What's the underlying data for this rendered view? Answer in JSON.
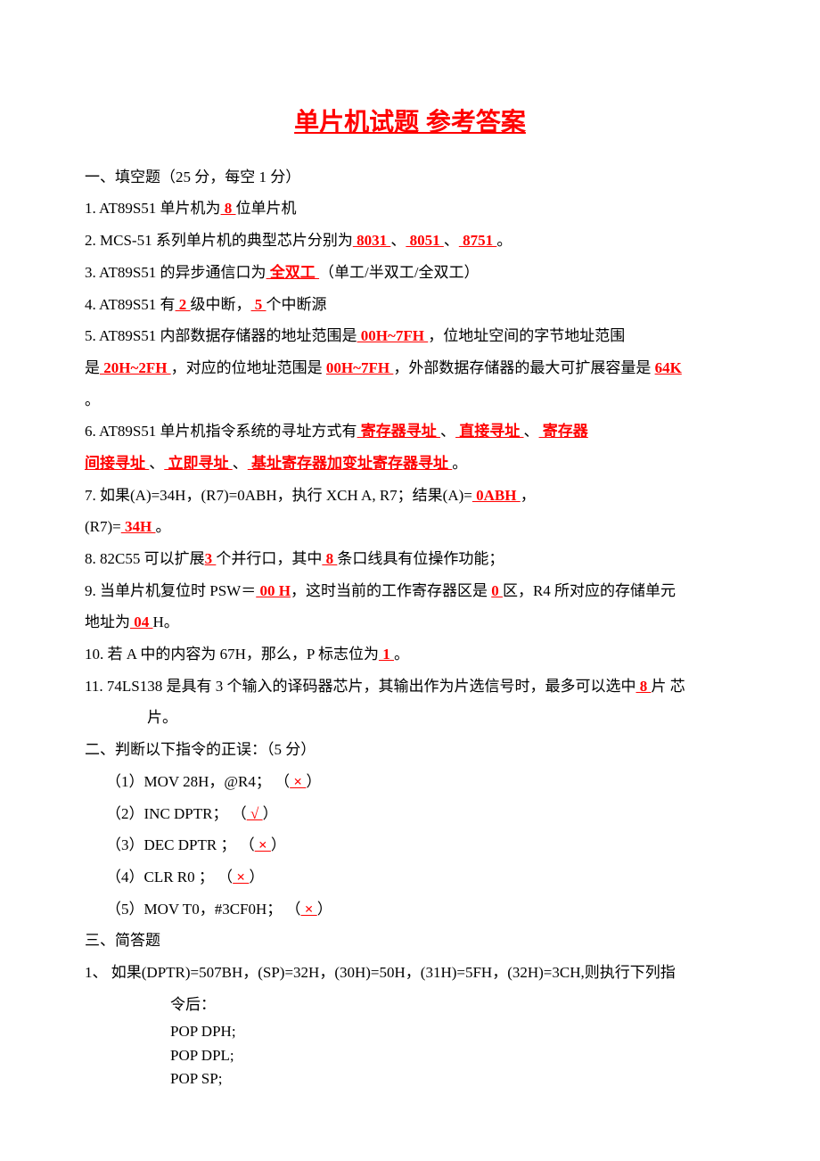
{
  "title": "单片机试题  参考答案",
  "section1": {
    "header": "一、填空题（25 分，每空 1 分）",
    "q1_pre": "1.   AT89S51 单片机为",
    "q1_ans": "   8   ",
    "q1_post": "位单片机",
    "q2_pre": "2.   MCS-51 系列单片机的典型芯片分别为",
    "q2_a1": "   8031   ",
    "q2_sep1": "、",
    "q2_a2": "   8051   ",
    "q2_sep2": "、",
    "q2_a3": "   8751   ",
    "q2_post": "。",
    "q3_pre": "3.   AT89S51 的异步通信口为",
    "q3_ans": "     全双工    ",
    "q3_post": "（单工/半双工/全双工）",
    "q4_pre": "4.   AT89S51 有",
    "q4_a1": "   2    ",
    "q4_mid": "级中断，",
    "q4_a2": "    5     ",
    "q4_post": "个中断源",
    "q5_pre": "5.   AT89S51 内部数据存储器的地址范围是",
    "q5_a1": "        00H~7FH      ",
    "q5_mid1": "，位地址空间的字节地址范围",
    "q5_line2_pre": "是",
    "q5_a2": "   20H~2FH   ",
    "q5_mid2": "，对应的位地址范围是 ",
    "q5_a3": "00H~7FH   ",
    "q5_mid3": "，外部数据存储器的最大可扩展容量是 ",
    "q5_a4": "64K",
    "q5_a4b": "      ",
    "q5_post": "。",
    "q6_pre": "6.   AT89S51 单片机指令系统的寻址方式有",
    "q6_a1": "  寄存器寻址  ",
    "q6_sep": "、",
    "q6_a2": "      直接寻址       ",
    "q6_a3": "    寄存器",
    "q6_a3b": "间接寻址        ",
    "q6_a4": "  立即寻址      ",
    "q6_a5": "  基址寄存器加变址寄存器寻址   ",
    "q6_post": "。",
    "q7_pre": "7.   如果(A)=34H，(R7)=0ABH，执行 XCH  A, R7；结果(A)=",
    "q7_a1": "   0ABH       ",
    "q7_mid": "，",
    "q7_line2_pre": "(R7)=",
    "q7_a2": "     34H     ",
    "q7_post": "。",
    "q8_pre": "8.   82C55 可以扩展",
    "q8_a1": "3    ",
    "q8_mid": "个并行口，其中",
    "q8_a2": "          8     ",
    "q8_post": "条口线具有位操作功能；",
    "q9_pre": "9.   当单片机复位时 PSW＝",
    "q9_a1": " 00   H",
    "q9_mid1": "，这时当前的工作寄存器区是 ",
    "q9_a2": "0 ",
    "q9_mid2": "区，R4 所对应的存储单元",
    "q9_line2_pre": "地址为",
    "q9_a3": "  04  ",
    "q9_post": "H。",
    "q10_pre": "10. 若 A 中的内容为 67H，那么，P 标志位为",
    "q10_a": "    1    ",
    "q10_post": "。",
    "q11_pre": "11. 74LS138 是具有 3 个输入的译码器芯片，其输出作为片选信号时，最多可以选中",
    "q11_a": "  8  ",
    "q11_post": " 片 芯",
    "q11_line2": "片。"
  },
  "section2": {
    "header": "二、判断以下指令的正误：（5 分）",
    "q1_pre": "（1）MOV    28H，@R4；           （",
    "q1_a": "  ×    ",
    "q1_post": "）",
    "q2_pre": "（2）INC      DPTR；                    （",
    "q2_a": "  √  ",
    "q2_post": "  ）",
    "q3_pre": "（3）DEC      DPTR ；                  （",
    "q3_a": "  ×    ",
    "q3_post": "）",
    "q4_pre": "（4）CLR      R0      ；                     （",
    "q4_a": "  ×    ",
    "q4_post": "）",
    "q5_pre": "（5）MOV T0，#3CF0H；    （",
    "q5_a": "  ×    ",
    "q5_post": "）"
  },
  "section3": {
    "header": "三、简答题",
    "q1_line1": "1、      如果(DPTR)=507BH，(SP)=32H，(30H)=50H，(31H)=5FH，(32H)=3CH,则执行下列指",
    "q1_line1b": "令后：",
    "code1": "POP        DPH;",
    "code2": "POP        DPL;",
    "code3": "POP        SP;"
  },
  "colors": {
    "red": "#ff0000",
    "black": "#000000",
    "bg": "#ffffff"
  },
  "typography": {
    "title_fontsize": 28,
    "body_fontsize": 17,
    "font_family": "SimSun"
  }
}
